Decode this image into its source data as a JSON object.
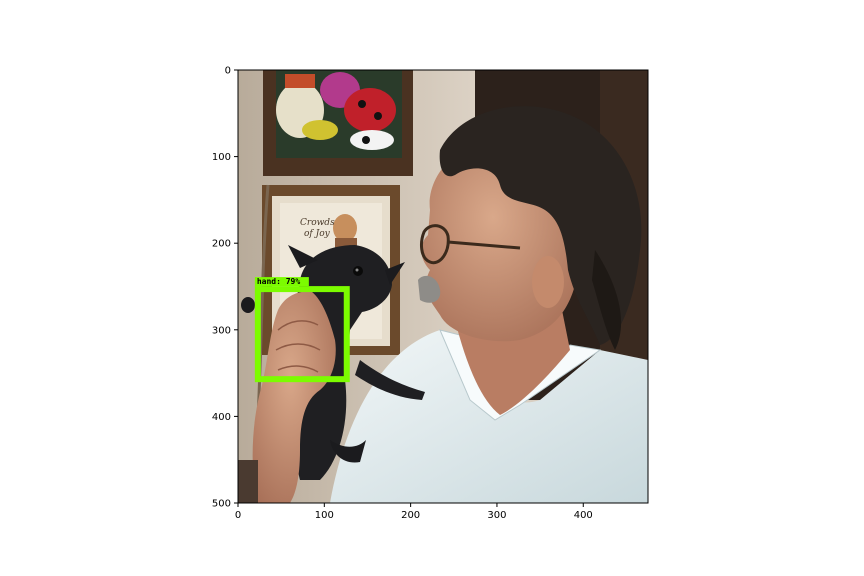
{
  "chart_data": {
    "type": "image",
    "image_description_hidden": false,
    "xlim": [
      0,
      475
    ],
    "ylim": [
      500,
      0
    ],
    "x_ticks": [
      0,
      100,
      200,
      300,
      400
    ],
    "y_ticks": [
      0,
      100,
      200,
      300,
      400,
      500
    ],
    "detections": [
      {
        "label": "hand: 79%",
        "color": "#7CFC00",
        "xmin": 23,
        "ymin": 253,
        "xmax": 126,
        "ymax": 357
      }
    ],
    "colors": {
      "box": "#7CFC00",
      "wall": "#d8cfc3",
      "shirt": "#e8f1f2",
      "skin": "#c89478",
      "hair": "#2a2420",
      "dog": "#1f1f22",
      "frame_wood": "#5a3b22"
    }
  }
}
